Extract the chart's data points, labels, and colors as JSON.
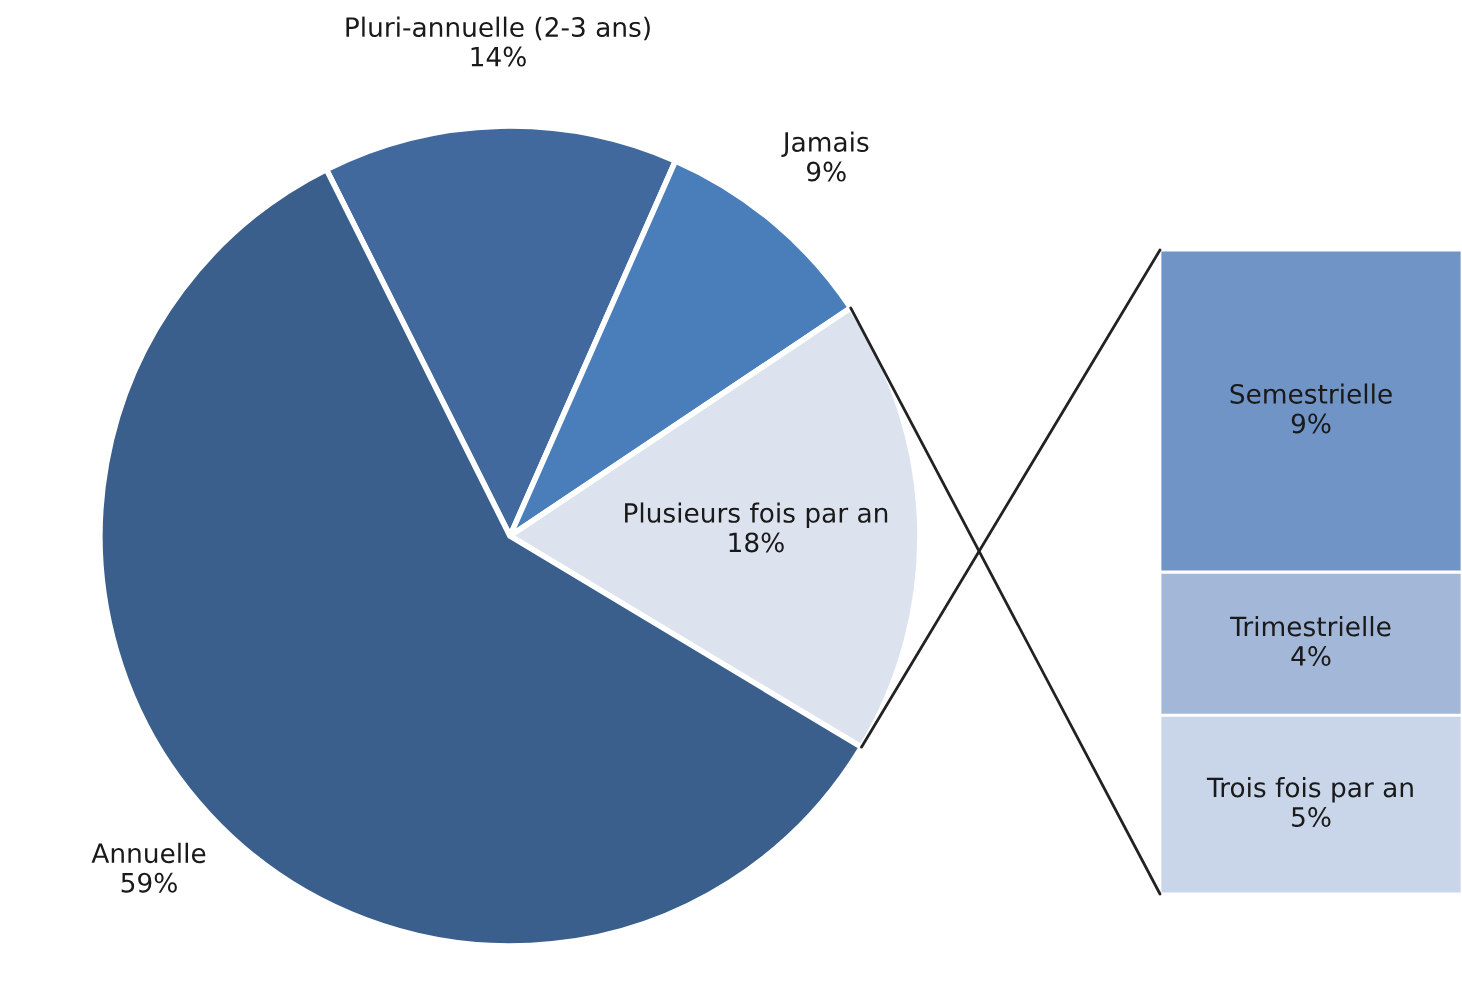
{
  "chart_data": [
    {
      "type": "pie",
      "categories": [
        "Pluri-annuelle (2-3 ans)",
        "Jamais",
        "Plusieurs fois par an",
        "Annuelle"
      ],
      "values": [
        14,
        9,
        18,
        59
      ],
      "value_labels": [
        "14%",
        "9%",
        "18%",
        "59%"
      ],
      "colors": [
        "#41699e",
        "#4a7ebb",
        "#dce3ef",
        "#3a5f8c"
      ],
      "legend": false
    },
    {
      "type": "bar",
      "stacked": true,
      "categories": [
        null
      ],
      "series": [
        {
          "name": "Trois fois par an",
          "color": "#c9d5e8",
          "values": [
            5
          ],
          "value_labels": [
            "5%"
          ]
        },
        {
          "name": "Trimestrielle",
          "color": "#a3b8d9",
          "values": [
            4
          ],
          "value_labels": [
            "4%"
          ]
        },
        {
          "name": "Semestrielle",
          "color": "#7094c6",
          "values": [
            9
          ],
          "value_labels": [
            "9%"
          ]
        }
      ],
      "legend": false
    }
  ]
}
